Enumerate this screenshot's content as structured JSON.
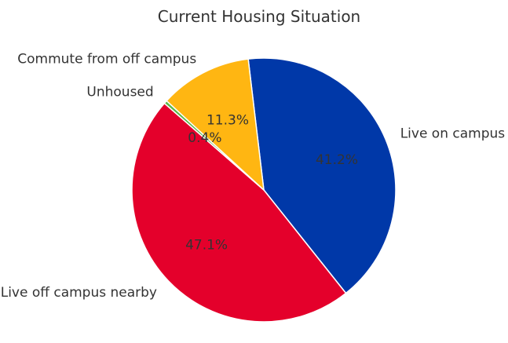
{
  "chart_data": {
    "type": "pie",
    "title": "Current Housing Situation",
    "slices": [
      {
        "label": "Live on campus",
        "value": 41.2,
        "pct_label": "41.2%",
        "color": "#0038a8"
      },
      {
        "label": "Live off campus nearby",
        "value": 47.1,
        "pct_label": "47.1%",
        "color": "#e4002b"
      },
      {
        "label": "Unhoused",
        "value": 0.4,
        "pct_label": "0.4%",
        "color": "#5bb846"
      },
      {
        "label": "Commute from off campus",
        "value": 11.3,
        "pct_label": "11.3%",
        "color": "#ffb612"
      }
    ],
    "start_angle_deg": 96.8,
    "direction": "clockwise",
    "label_distance": 1.12,
    "pct_distance": 0.6,
    "wedge_edge_color": "#ffffff",
    "text_color": "#333333",
    "background": "#ffffff",
    "legend": "none",
    "grid": "off"
  }
}
